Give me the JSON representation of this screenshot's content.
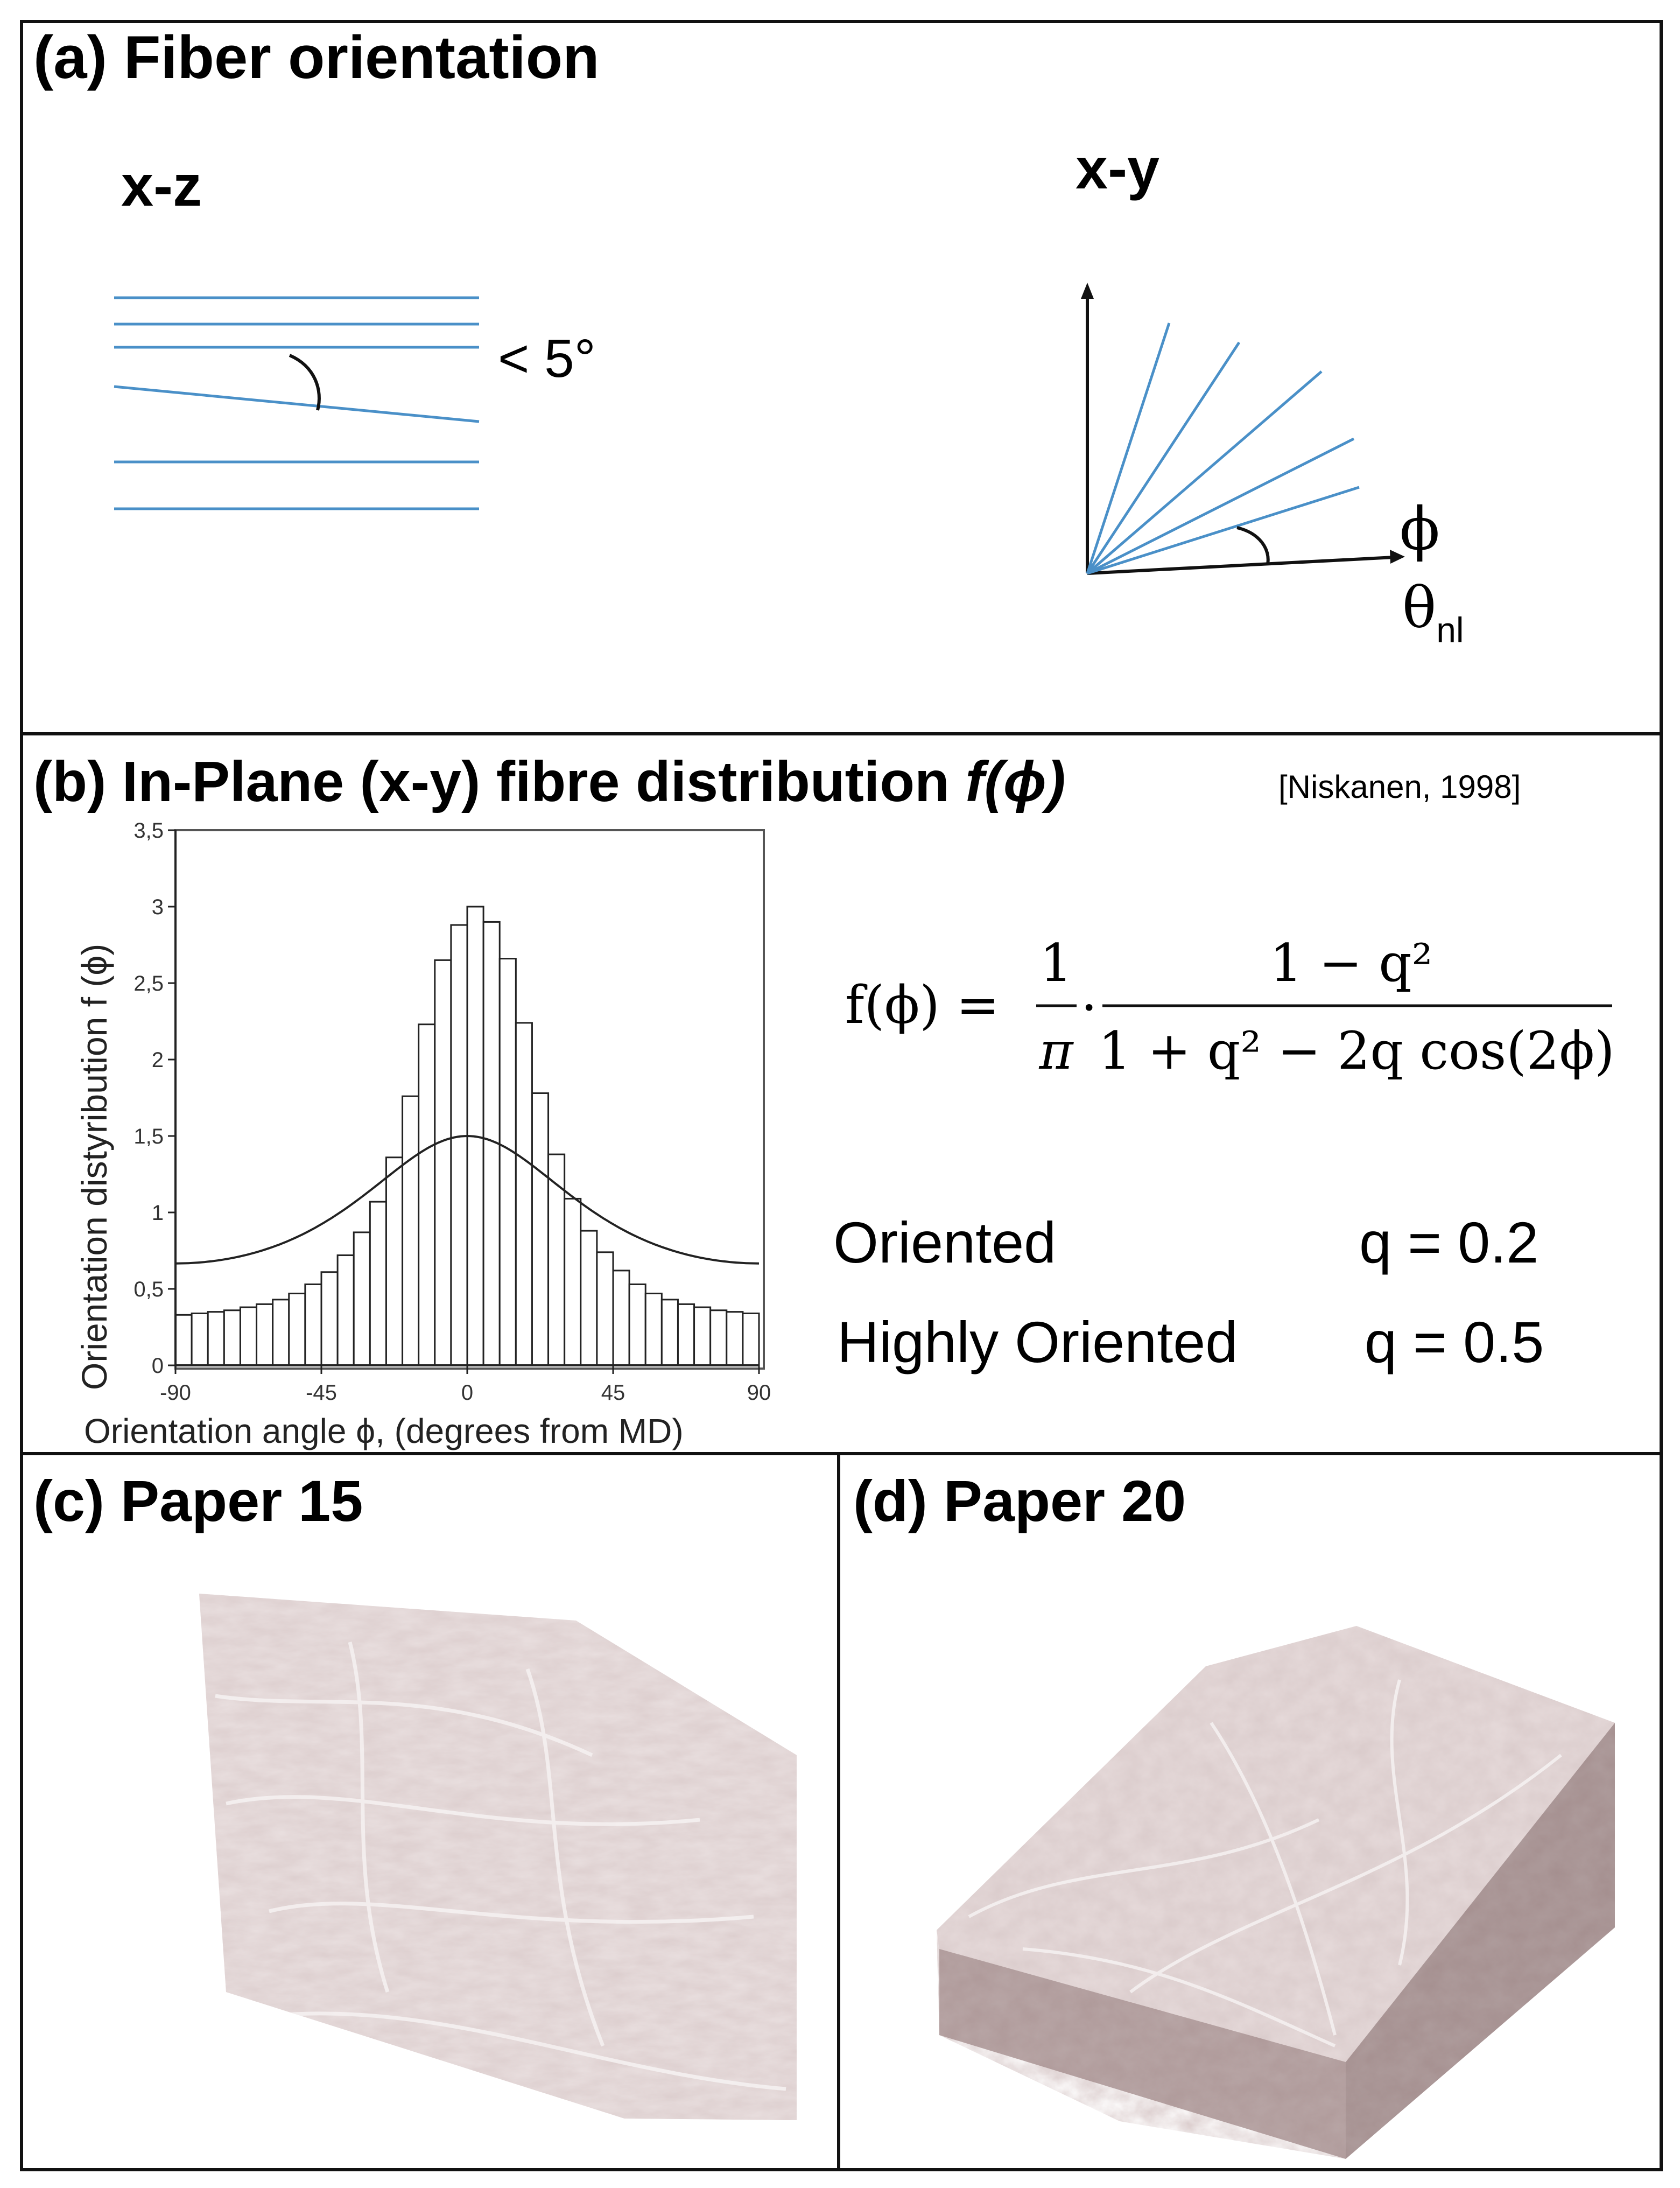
{
  "panel_a": {
    "title": "(a) Fiber orientation",
    "xz_label": "x-z",
    "xy_label": "x-y",
    "angle_label": "< 5°",
    "phi_label": "ϕ",
    "theta_label": "θ",
    "theta_sub": "nl"
  },
  "panel_b": {
    "title_prefix": "(b) In-Plane (x-y) fibre distribution ",
    "title_func": "f(ϕ)",
    "citation": "[Niskanen, 1998]",
    "formula_lhs": "f(ϕ) =",
    "formula_frac1_num": "1",
    "formula_frac1_den": "π",
    "formula_dot": "·",
    "formula_num": "1 − q²",
    "formula_den": "1 + q² − 2q cos(2ϕ)",
    "rows": [
      {
        "label": "Oriented",
        "value": "q = 0.2"
      },
      {
        "label": "Highly Oriented",
        "value": "q = 0.5"
      }
    ]
  },
  "panel_c": {
    "title": "(c) Paper 15"
  },
  "panel_d": {
    "title": "(d) Paper 20"
  },
  "colors": {
    "fiber_line": "#4a90c8",
    "border": "#111111",
    "paper_tone": "#b79f9f",
    "paper_light": "#e8dcdc"
  },
  "chart_data": {
    "type": "bar",
    "xlabel": "Orientation angle ϕ, (degrees from MD)",
    "ylabel": "Orientation distyribution f (ϕ)",
    "xlim": [
      -90,
      90
    ],
    "ylim": [
      0,
      3.5
    ],
    "x_ticks": [
      "-90",
      "-45",
      "0",
      "45",
      "90"
    ],
    "x_tick_values": [
      -90,
      -45,
      0,
      45,
      90
    ],
    "y_ticks": [
      "0",
      "0,5",
      "1",
      "1,5",
      "2",
      "2,5",
      "3",
      "3,5"
    ],
    "y_tick_values": [
      0,
      0.5,
      1,
      1.5,
      2,
      2.5,
      3,
      3.5
    ],
    "bar_width_deg": 5,
    "bar_left_edges": [
      -90,
      -85,
      -80,
      -75,
      -70,
      -65,
      -60,
      -55,
      -50,
      -45,
      -40,
      -35,
      -30,
      -25,
      -20,
      -15,
      -10,
      -5,
      0,
      5,
      10,
      15,
      20,
      25,
      30,
      35,
      40,
      45,
      50,
      55,
      60,
      65,
      70,
      75,
      80,
      85
    ],
    "bar_values": [
      0.33,
      0.34,
      0.35,
      0.36,
      0.38,
      0.4,
      0.43,
      0.47,
      0.53,
      0.61,
      0.72,
      0.87,
      1.07,
      1.36,
      1.76,
      2.23,
      2.65,
      2.88,
      3.0,
      2.9,
      2.66,
      2.24,
      1.78,
      1.38,
      1.09,
      0.88,
      0.74,
      0.62,
      0.53,
      0.47,
      0.43,
      0.4,
      0.38,
      0.36,
      0.35,
      0.34
    ],
    "curve_q": 0.2
  }
}
